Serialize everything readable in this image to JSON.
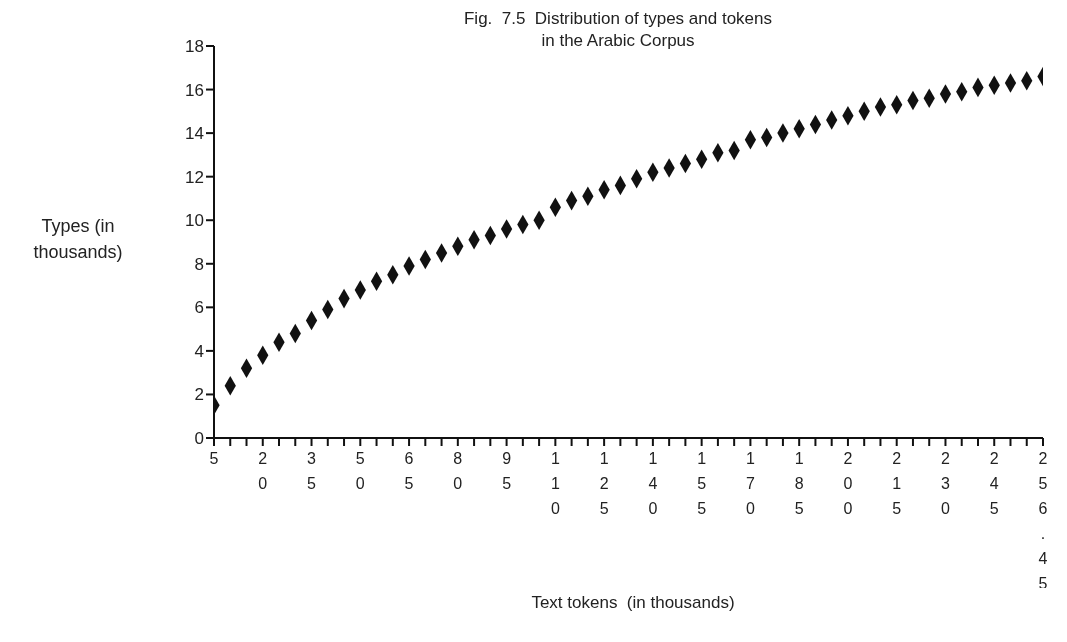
{
  "chart_data": {
    "type": "scatter",
    "title": "Fig.  7.5  Distribution of types and tokens\nin the Arabic Corpus",
    "xlabel": "Text tokens  (in thousands)",
    "ylabel": "Types  (in thousands)",
    "categories": [
      "5",
      null,
      null,
      "20",
      null,
      null,
      "35",
      null,
      null,
      "50",
      null,
      null,
      "65",
      null,
      null,
      "80",
      null,
      null,
      "95",
      null,
      null,
      "110",
      null,
      null,
      "125",
      null,
      null,
      "140",
      null,
      null,
      "155",
      null,
      null,
      "170",
      null,
      null,
      "185",
      null,
      null,
      "200",
      null,
      null,
      "215",
      null,
      null,
      "230",
      null,
      null,
      "245",
      null,
      null,
      "256.45"
    ],
    "values": [
      1.5,
      2.4,
      3.2,
      3.8,
      4.4,
      4.8,
      5.4,
      5.9,
      6.4,
      6.8,
      7.2,
      7.5,
      7.9,
      8.2,
      8.5,
      8.8,
      9.1,
      9.3,
      9.6,
      9.8,
      10.0,
      10.6,
      10.9,
      11.1,
      11.4,
      11.6,
      11.9,
      12.2,
      12.4,
      12.6,
      12.8,
      13.1,
      13.2,
      13.7,
      13.8,
      14.0,
      14.2,
      14.4,
      14.6,
      14.8,
      15.0,
      15.2,
      15.3,
      15.5,
      15.6,
      15.8,
      15.9,
      16.1,
      16.2,
      16.3,
      16.4,
      16.6
    ],
    "color": "#111111",
    "marker": "diamond",
    "ylim": [
      0,
      18
    ],
    "yticks": [
      0,
      2,
      4,
      6,
      8,
      10,
      12,
      14,
      16,
      18
    ],
    "grid": false,
    "legend": false
  }
}
